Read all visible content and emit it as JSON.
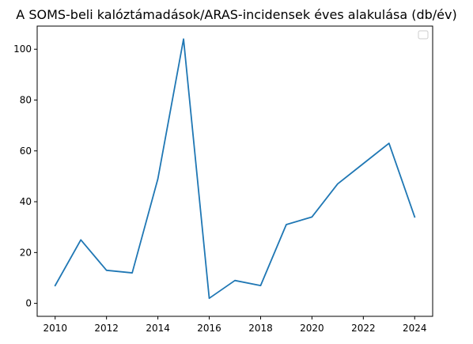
{
  "chart_data": {
    "type": "line",
    "title": "A SOMS-beli kalóztámadások/ARAS-incidensek éves alakulása (db/év)",
    "xlabel": "",
    "ylabel": "",
    "xlim": [
      2009.3,
      2024.7
    ],
    "ylim": [
      -5.1,
      109.1
    ],
    "x_ticks": [
      2010,
      2012,
      2014,
      2016,
      2018,
      2020,
      2022,
      2024
    ],
    "y_ticks": [
      0,
      20,
      40,
      60,
      80,
      100
    ],
    "grid": false,
    "legend": {
      "visible": true,
      "placement": "top-right",
      "entries": []
    },
    "series": [
      {
        "color": "#1f77b4",
        "x": [
          2010,
          2011,
          2012,
          2013,
          2014,
          2015,
          2016,
          2017,
          2018,
          2019,
          2020,
          2021,
          2022,
          2023,
          2024
        ],
        "values": [
          7,
          25,
          13,
          12,
          49,
          104,
          2,
          9,
          7,
          31,
          34,
          47,
          55,
          63,
          34
        ]
      }
    ]
  }
}
